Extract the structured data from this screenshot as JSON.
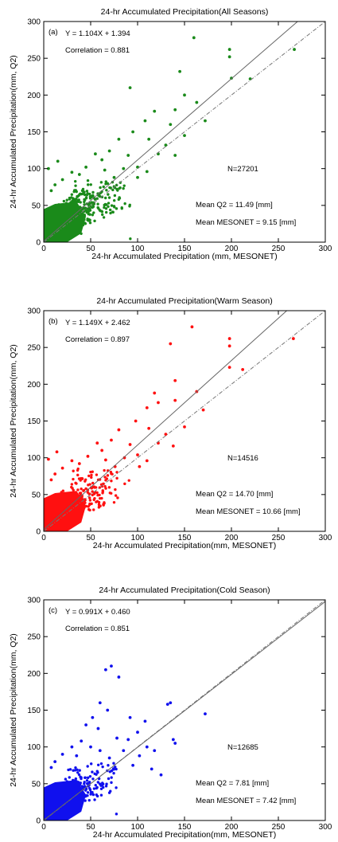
{
  "chart_data": [
    {
      "type": "scatter",
      "panel_label": "(a)",
      "title": "24-hr Accumulated Precipitation(All Seasons)",
      "xlabel": "24-hr Accumulated Precipitation (mm, MESONET)",
      "ylabel": "24-hr Accumulated Precipitation(mm, Q2)",
      "xlim": [
        0,
        300
      ],
      "ylim": [
        0,
        300
      ],
      "xticks": [
        "0",
        "50",
        "100",
        "150",
        "200",
        "250",
        "300"
      ],
      "yticks": [
        "0",
        "50",
        "100",
        "150",
        "200",
        "250",
        "300"
      ],
      "grid": false,
      "point_color": "#1a8a1a",
      "fit_equation": "Y = 1.104X + 1.394",
      "fit_slope": 1.104,
      "fit_intercept": 1.394,
      "correlation": "Correlation = 0.881",
      "n_label": "N=27201",
      "mean_q2": "Mean Q2 = 11.49 [mm]",
      "mean_mesonet": "Mean MESONET = 9.15 [mm]",
      "outliers": [
        [
          160,
          278
        ],
        [
          198,
          262
        ],
        [
          198,
          252
        ],
        [
          145,
          232
        ],
        [
          267,
          262
        ],
        [
          220,
          222
        ],
        [
          200,
          223
        ],
        [
          150,
          200
        ],
        [
          92,
          210
        ],
        [
          163,
          190
        ],
        [
          172,
          165
        ],
        [
          140,
          180
        ],
        [
          118,
          178
        ],
        [
          135,
          160
        ],
        [
          108,
          165
        ],
        [
          95,
          150
        ],
        [
          112,
          140
        ],
        [
          130,
          132
        ],
        [
          80,
          140
        ],
        [
          122,
          120
        ],
        [
          70,
          124
        ],
        [
          90,
          118
        ],
        [
          55,
          120
        ],
        [
          62,
          112
        ],
        [
          140,
          118
        ],
        [
          150,
          145
        ],
        [
          85,
          100
        ],
        [
          100,
          102
        ],
        [
          45,
          102
        ],
        [
          65,
          98
        ],
        [
          75,
          88
        ],
        [
          100,
          88
        ],
        [
          110,
          96
        ],
        [
          38,
          92
        ],
        [
          30,
          95
        ],
        [
          20,
          85
        ],
        [
          12,
          78
        ],
        [
          8,
          70
        ],
        [
          15,
          110
        ],
        [
          5,
          100
        ]
      ],
      "cloud": {
        "max_x": 65,
        "max_y": 85,
        "count": 650,
        "seed": 11
      }
    },
    {
      "type": "scatter",
      "panel_label": "(b)",
      "title": "24-hr Accumulated Precipitation(Warm Season)",
      "xlabel": "24-hr Accumulated Precipitation(mm, MESONET)",
      "ylabel": "24-hr Accumulated Precipitation(mm, Q2)",
      "xlim": [
        0,
        300
      ],
      "ylim": [
        0,
        300
      ],
      "xticks": [
        "0",
        "50",
        "100",
        "150",
        "200",
        "250",
        "300"
      ],
      "yticks": [
        "0",
        "50",
        "100",
        "150",
        "200",
        "250",
        "300"
      ],
      "grid": false,
      "point_color": "#ff1010",
      "fit_equation": "Y = 1.149X + 2.462",
      "fit_slope": 1.149,
      "fit_intercept": 2.462,
      "correlation": "Correlation = 0.897",
      "n_label": "N=14516",
      "mean_q2": "Mean Q2 = 14.70 [mm]",
      "mean_mesonet": "Mean MESONET = 10.66 [mm]",
      "outliers": [
        [
          158,
          278
        ],
        [
          198,
          262
        ],
        [
          198,
          252
        ],
        [
          135,
          255
        ],
        [
          266,
          262
        ],
        [
          212,
          220
        ],
        [
          198,
          223
        ],
        [
          140,
          205
        ],
        [
          163,
          190
        ],
        [
          118,
          188
        ],
        [
          170,
          165
        ],
        [
          140,
          178
        ],
        [
          122,
          175
        ],
        [
          110,
          168
        ],
        [
          98,
          150
        ],
        [
          112,
          140
        ],
        [
          130,
          132
        ],
        [
          80,
          138
        ],
        [
          122,
          120
        ],
        [
          72,
          124
        ],
        [
          92,
          118
        ],
        [
          57,
          120
        ],
        [
          62,
          110
        ],
        [
          138,
          116
        ],
        [
          150,
          142
        ],
        [
          86,
          100
        ],
        [
          100,
          104
        ],
        [
          47,
          102
        ],
        [
          66,
          97
        ],
        [
          76,
          88
        ],
        [
          102,
          88
        ],
        [
          110,
          96
        ],
        [
          38,
          92
        ],
        [
          30,
          96
        ],
        [
          20,
          86
        ],
        [
          12,
          78
        ],
        [
          8,
          70
        ],
        [
          14,
          108
        ],
        [
          5,
          98
        ]
      ],
      "cloud": {
        "max_x": 65,
        "max_y": 85,
        "count": 500,
        "seed": 23
      }
    },
    {
      "type": "scatter",
      "panel_label": "(c)",
      "title": "24-hr Accumulated Precipitation(Cold Season)",
      "xlabel": "24-hr Accumulated Precipitation(mm, MESONET)",
      "ylabel": "24-hr Accumulated Precipitation(mm, Q2)",
      "xlim": [
        0,
        300
      ],
      "ylim": [
        0,
        300
      ],
      "xticks": [
        "0",
        "50",
        "100",
        "150",
        "200",
        "250",
        "300"
      ],
      "yticks": [
        "0",
        "50",
        "100",
        "150",
        "200",
        "250",
        "300"
      ],
      "grid": false,
      "point_color": "#1010ee",
      "fit_equation": "Y = 0.991X + 0.460",
      "fit_slope": 0.991,
      "fit_intercept": 0.46,
      "correlation": "Correlation = 0.851",
      "n_label": "N=12685",
      "mean_q2": "Mean Q2 = 7.81 [mm]",
      "mean_mesonet": "Mean MESONET = 7.42 [mm]",
      "outliers": [
        [
          72,
          210
        ],
        [
          66,
          205
        ],
        [
          80,
          195
        ],
        [
          60,
          160
        ],
        [
          135,
          160
        ],
        [
          132,
          158
        ],
        [
          68,
          150
        ],
        [
          172,
          145
        ],
        [
          92,
          140
        ],
        [
          108,
          135
        ],
        [
          138,
          110
        ],
        [
          140,
          105
        ],
        [
          100,
          120
        ],
        [
          110,
          100
        ],
        [
          118,
          95
        ],
        [
          125,
          62
        ],
        [
          90,
          110
        ],
        [
          85,
          95
        ],
        [
          52,
          140
        ],
        [
          45,
          130
        ],
        [
          58,
          125
        ],
        [
          78,
          112
        ],
        [
          102,
          88
        ],
        [
          40,
          108
        ],
        [
          30,
          100
        ],
        [
          20,
          90
        ],
        [
          12,
          80
        ],
        [
          8,
          72
        ],
        [
          70,
          85
        ],
        [
          95,
          75
        ],
        [
          115,
          70
        ],
        [
          60,
          95
        ],
        [
          50,
          100
        ],
        [
          35,
          88
        ]
      ],
      "cloud": {
        "max_x": 60,
        "max_y": 78,
        "count": 420,
        "seed": 37
      }
    }
  ]
}
